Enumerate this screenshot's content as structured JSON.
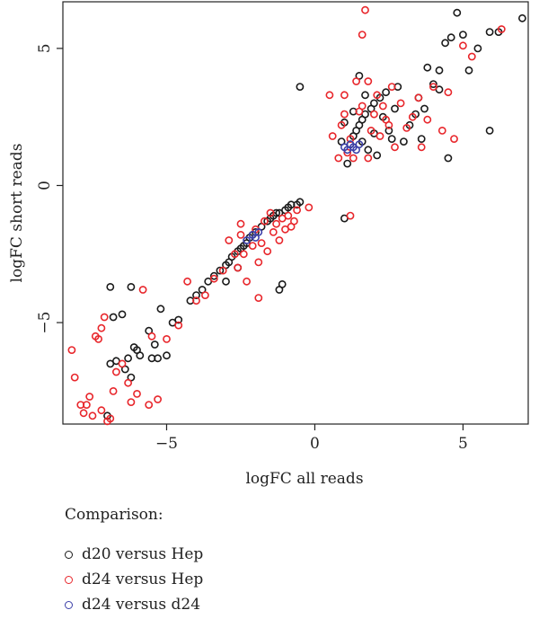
{
  "chart_data": {
    "type": "scatter",
    "xlabel": "logFC all reads",
    "ylabel": "logFC short reads",
    "xlim": [
      -8.5,
      7.2
    ],
    "ylim": [
      -8.7,
      6.7
    ],
    "xticks": [
      -5,
      0,
      5
    ],
    "yticks": [
      -5,
      0,
      5
    ],
    "xtick_labels": [
      "−5",
      "0",
      "5"
    ],
    "ytick_labels": [
      "−5",
      "0",
      "5"
    ],
    "grid": false,
    "legend": {
      "title": "Comparison:",
      "placement": "bottom-left",
      "entries": [
        {
          "label": "d20 versus Hep",
          "color": "#1a1a1a"
        },
        {
          "label": "d24 versus Hep",
          "color": "#e8262b"
        },
        {
          "label": "d24 versus d24",
          "color": "#3b3fa8"
        }
      ]
    },
    "series": [
      {
        "name": "d20 versus Hep",
        "color": "#1a1a1a",
        "points": [
          [
            -7.0,
            -8.4
          ],
          [
            -6.9,
            -6.5
          ],
          [
            -6.8,
            -4.8
          ],
          [
            -6.7,
            -6.4
          ],
          [
            -6.5,
            -4.7
          ],
          [
            -6.4,
            -6.7
          ],
          [
            -6.3,
            -6.3
          ],
          [
            -6.2,
            -7.0
          ],
          [
            -6.1,
            -5.9
          ],
          [
            -6.0,
            -6.0
          ],
          [
            -6.2,
            -3.7
          ],
          [
            -6.9,
            -3.7
          ],
          [
            -5.9,
            -6.2
          ],
          [
            -5.6,
            -5.3
          ],
          [
            -5.4,
            -5.8
          ],
          [
            -5.5,
            -6.3
          ],
          [
            -5.3,
            -6.3
          ],
          [
            -5.2,
            -4.5
          ],
          [
            -5.0,
            -6.2
          ],
          [
            -4.8,
            -5.0
          ],
          [
            -4.6,
            -4.9
          ],
          [
            -4.2,
            -4.2
          ],
          [
            -4.0,
            -4.0
          ],
          [
            -3.8,
            -3.8
          ],
          [
            -3.6,
            -3.5
          ],
          [
            -3.4,
            -3.3
          ],
          [
            -3.2,
            -3.1
          ],
          [
            -3.0,
            -2.9
          ],
          [
            -2.9,
            -2.8
          ],
          [
            -2.8,
            -2.6
          ],
          [
            -2.6,
            -2.4
          ],
          [
            -2.5,
            -2.3
          ],
          [
            -2.4,
            -2.2
          ],
          [
            -2.3,
            -2.1
          ],
          [
            -2.2,
            -1.9
          ],
          [
            -2.1,
            -1.8
          ],
          [
            -2.0,
            -1.7
          ],
          [
            -1.8,
            -1.5
          ],
          [
            -1.6,
            -1.3
          ],
          [
            -1.5,
            -1.2
          ],
          [
            -1.4,
            -1.1
          ],
          [
            -1.3,
            -1.0
          ],
          [
            -1.2,
            -1.0
          ],
          [
            -1.0,
            -0.9
          ],
          [
            -0.9,
            -0.8
          ],
          [
            -0.8,
            -0.7
          ],
          [
            -0.6,
            -0.7
          ],
          [
            -0.5,
            -0.6
          ],
          [
            -2.6,
            -3.0
          ],
          [
            -3.0,
            -3.5
          ],
          [
            -1.2,
            -3.8
          ],
          [
            -1.1,
            -3.6
          ],
          [
            -0.5,
            3.6
          ],
          [
            1.0,
            -1.2
          ],
          [
            1.2,
            1.5
          ],
          [
            1.3,
            1.8
          ],
          [
            1.4,
            2.0
          ],
          [
            1.5,
            2.2
          ],
          [
            1.6,
            2.4
          ],
          [
            1.7,
            2.6
          ],
          [
            1.8,
            1.3
          ],
          [
            1.9,
            2.8
          ],
          [
            2.0,
            3.0
          ],
          [
            2.1,
            1.1
          ],
          [
            2.2,
            3.2
          ],
          [
            2.3,
            2.5
          ],
          [
            2.4,
            3.4
          ],
          [
            2.5,
            2.0
          ],
          [
            2.6,
            1.7
          ],
          [
            2.8,
            3.6
          ],
          [
            3.0,
            1.6
          ],
          [
            3.2,
            2.2
          ],
          [
            3.4,
            2.6
          ],
          [
            3.6,
            1.7
          ],
          [
            3.8,
            4.3
          ],
          [
            4.0,
            3.7
          ],
          [
            4.2,
            4.2
          ],
          [
            4.4,
            5.2
          ],
          [
            4.6,
            5.4
          ],
          [
            4.8,
            6.3
          ],
          [
            5.0,
            5.5
          ],
          [
            5.2,
            4.2
          ],
          [
            5.5,
            5.0
          ],
          [
            5.9,
            2.0
          ],
          [
            6.2,
            5.6
          ],
          [
            7.0,
            6.1
          ],
          [
            4.5,
            1.0
          ],
          [
            3.5,
            3.2
          ],
          [
            1.5,
            4.0
          ],
          [
            1.0,
            2.3
          ],
          [
            0.9,
            1.6
          ],
          [
            1.1,
            0.8
          ],
          [
            1.3,
            2.7
          ],
          [
            1.6,
            1.6
          ],
          [
            2.0,
            1.9
          ],
          [
            2.7,
            2.8
          ],
          [
            1.7,
            3.3
          ],
          [
            4.2,
            3.5
          ],
          [
            3.7,
            2.8
          ],
          [
            5.9,
            5.6
          ]
        ]
      },
      {
        "name": "d24 versus Hep",
        "color": "#e8262b",
        "points": [
          [
            -8.2,
            -6.0
          ],
          [
            -8.1,
            -7.0
          ],
          [
            -7.9,
            -8.0
          ],
          [
            -7.8,
            -8.3
          ],
          [
            -7.7,
            -8.0
          ],
          [
            -7.6,
            -7.7
          ],
          [
            -7.5,
            -8.4
          ],
          [
            -7.4,
            -5.5
          ],
          [
            -7.3,
            -5.6
          ],
          [
            -7.2,
            -5.2
          ],
          [
            -7.2,
            -8.2
          ],
          [
            -7.1,
            -4.8
          ],
          [
            -7.0,
            -8.6
          ],
          [
            -6.9,
            -8.5
          ],
          [
            -6.8,
            -7.5
          ],
          [
            -6.7,
            -6.8
          ],
          [
            -6.5,
            -6.5
          ],
          [
            -6.3,
            -7.2
          ],
          [
            -6.2,
            -7.9
          ],
          [
            -6.0,
            -7.6
          ],
          [
            -5.8,
            -3.8
          ],
          [
            -5.6,
            -8.0
          ],
          [
            -5.5,
            -5.5
          ],
          [
            -5.3,
            -7.8
          ],
          [
            -5.0,
            -5.6
          ],
          [
            -4.6,
            -5.1
          ],
          [
            -4.3,
            -3.5
          ],
          [
            -4.0,
            -4.2
          ],
          [
            -3.7,
            -4.0
          ],
          [
            -3.4,
            -3.4
          ],
          [
            -3.1,
            -3.1
          ],
          [
            -2.9,
            -2.0
          ],
          [
            -2.6,
            -3.0
          ],
          [
            -2.5,
            -1.8
          ],
          [
            -2.4,
            -2.5
          ],
          [
            -2.3,
            -3.5
          ],
          [
            -2.1,
            -2.2
          ],
          [
            -2.0,
            -1.6
          ],
          [
            -1.9,
            -2.8
          ],
          [
            -1.8,
            -2.1
          ],
          [
            -1.7,
            -1.3
          ],
          [
            -1.6,
            -2.4
          ],
          [
            -1.5,
            -1.0
          ],
          [
            -1.4,
            -1.7
          ],
          [
            -1.3,
            -1.4
          ],
          [
            -1.2,
            -2.0
          ],
          [
            -1.1,
            -1.2
          ],
          [
            -1.0,
            -1.6
          ],
          [
            -0.9,
            -1.1
          ],
          [
            -0.8,
            -1.5
          ],
          [
            -0.7,
            -1.3
          ],
          [
            -0.6,
            -0.9
          ],
          [
            -2.5,
            -1.4
          ],
          [
            -1.9,
            -4.1
          ],
          [
            -2.7,
            -2.5
          ],
          [
            -0.2,
            -0.8
          ],
          [
            1.2,
            -1.1
          ],
          [
            0.5,
            3.3
          ],
          [
            0.6,
            1.8
          ],
          [
            0.8,
            1.0
          ],
          [
            1.0,
            2.6
          ],
          [
            1.1,
            1.2
          ],
          [
            1.3,
            1.0
          ],
          [
            1.5,
            2.7
          ],
          [
            1.6,
            5.5
          ],
          [
            1.7,
            6.4
          ],
          [
            1.8,
            1.0
          ],
          [
            1.9,
            2.0
          ],
          [
            2.1,
            3.3
          ],
          [
            2.2,
            1.8
          ],
          [
            2.4,
            2.4
          ],
          [
            2.6,
            3.6
          ],
          [
            2.7,
            1.4
          ],
          [
            2.9,
            3.0
          ],
          [
            3.1,
            2.1
          ],
          [
            3.3,
            2.5
          ],
          [
            3.6,
            1.4
          ],
          [
            3.8,
            2.4
          ],
          [
            4.0,
            3.6
          ],
          [
            4.3,
            2.0
          ],
          [
            4.7,
            1.7
          ],
          [
            5.0,
            5.1
          ],
          [
            5.3,
            4.7
          ],
          [
            6.3,
            5.7
          ],
          [
            1.4,
            3.8
          ],
          [
            2.0,
            2.6
          ],
          [
            0.9,
            2.2
          ],
          [
            1.2,
            1.7
          ],
          [
            1.8,
            3.8
          ],
          [
            2.3,
            2.9
          ],
          [
            3.5,
            3.2
          ],
          [
            2.5,
            2.2
          ],
          [
            1.0,
            3.3
          ],
          [
            1.6,
            2.9
          ],
          [
            4.5,
            3.4
          ]
        ]
      },
      {
        "name": "d24 versus d24",
        "color": "#3b3fa8",
        "points": [
          [
            -2.3,
            -2.0
          ],
          [
            -2.1,
            -1.8
          ],
          [
            -2.0,
            -1.9
          ],
          [
            -1.9,
            -1.7
          ],
          [
            1.0,
            1.4
          ],
          [
            1.1,
            1.3
          ],
          [
            1.2,
            1.5
          ],
          [
            1.3,
            1.4
          ],
          [
            1.4,
            1.3
          ],
          [
            1.5,
            1.5
          ]
        ]
      }
    ]
  }
}
